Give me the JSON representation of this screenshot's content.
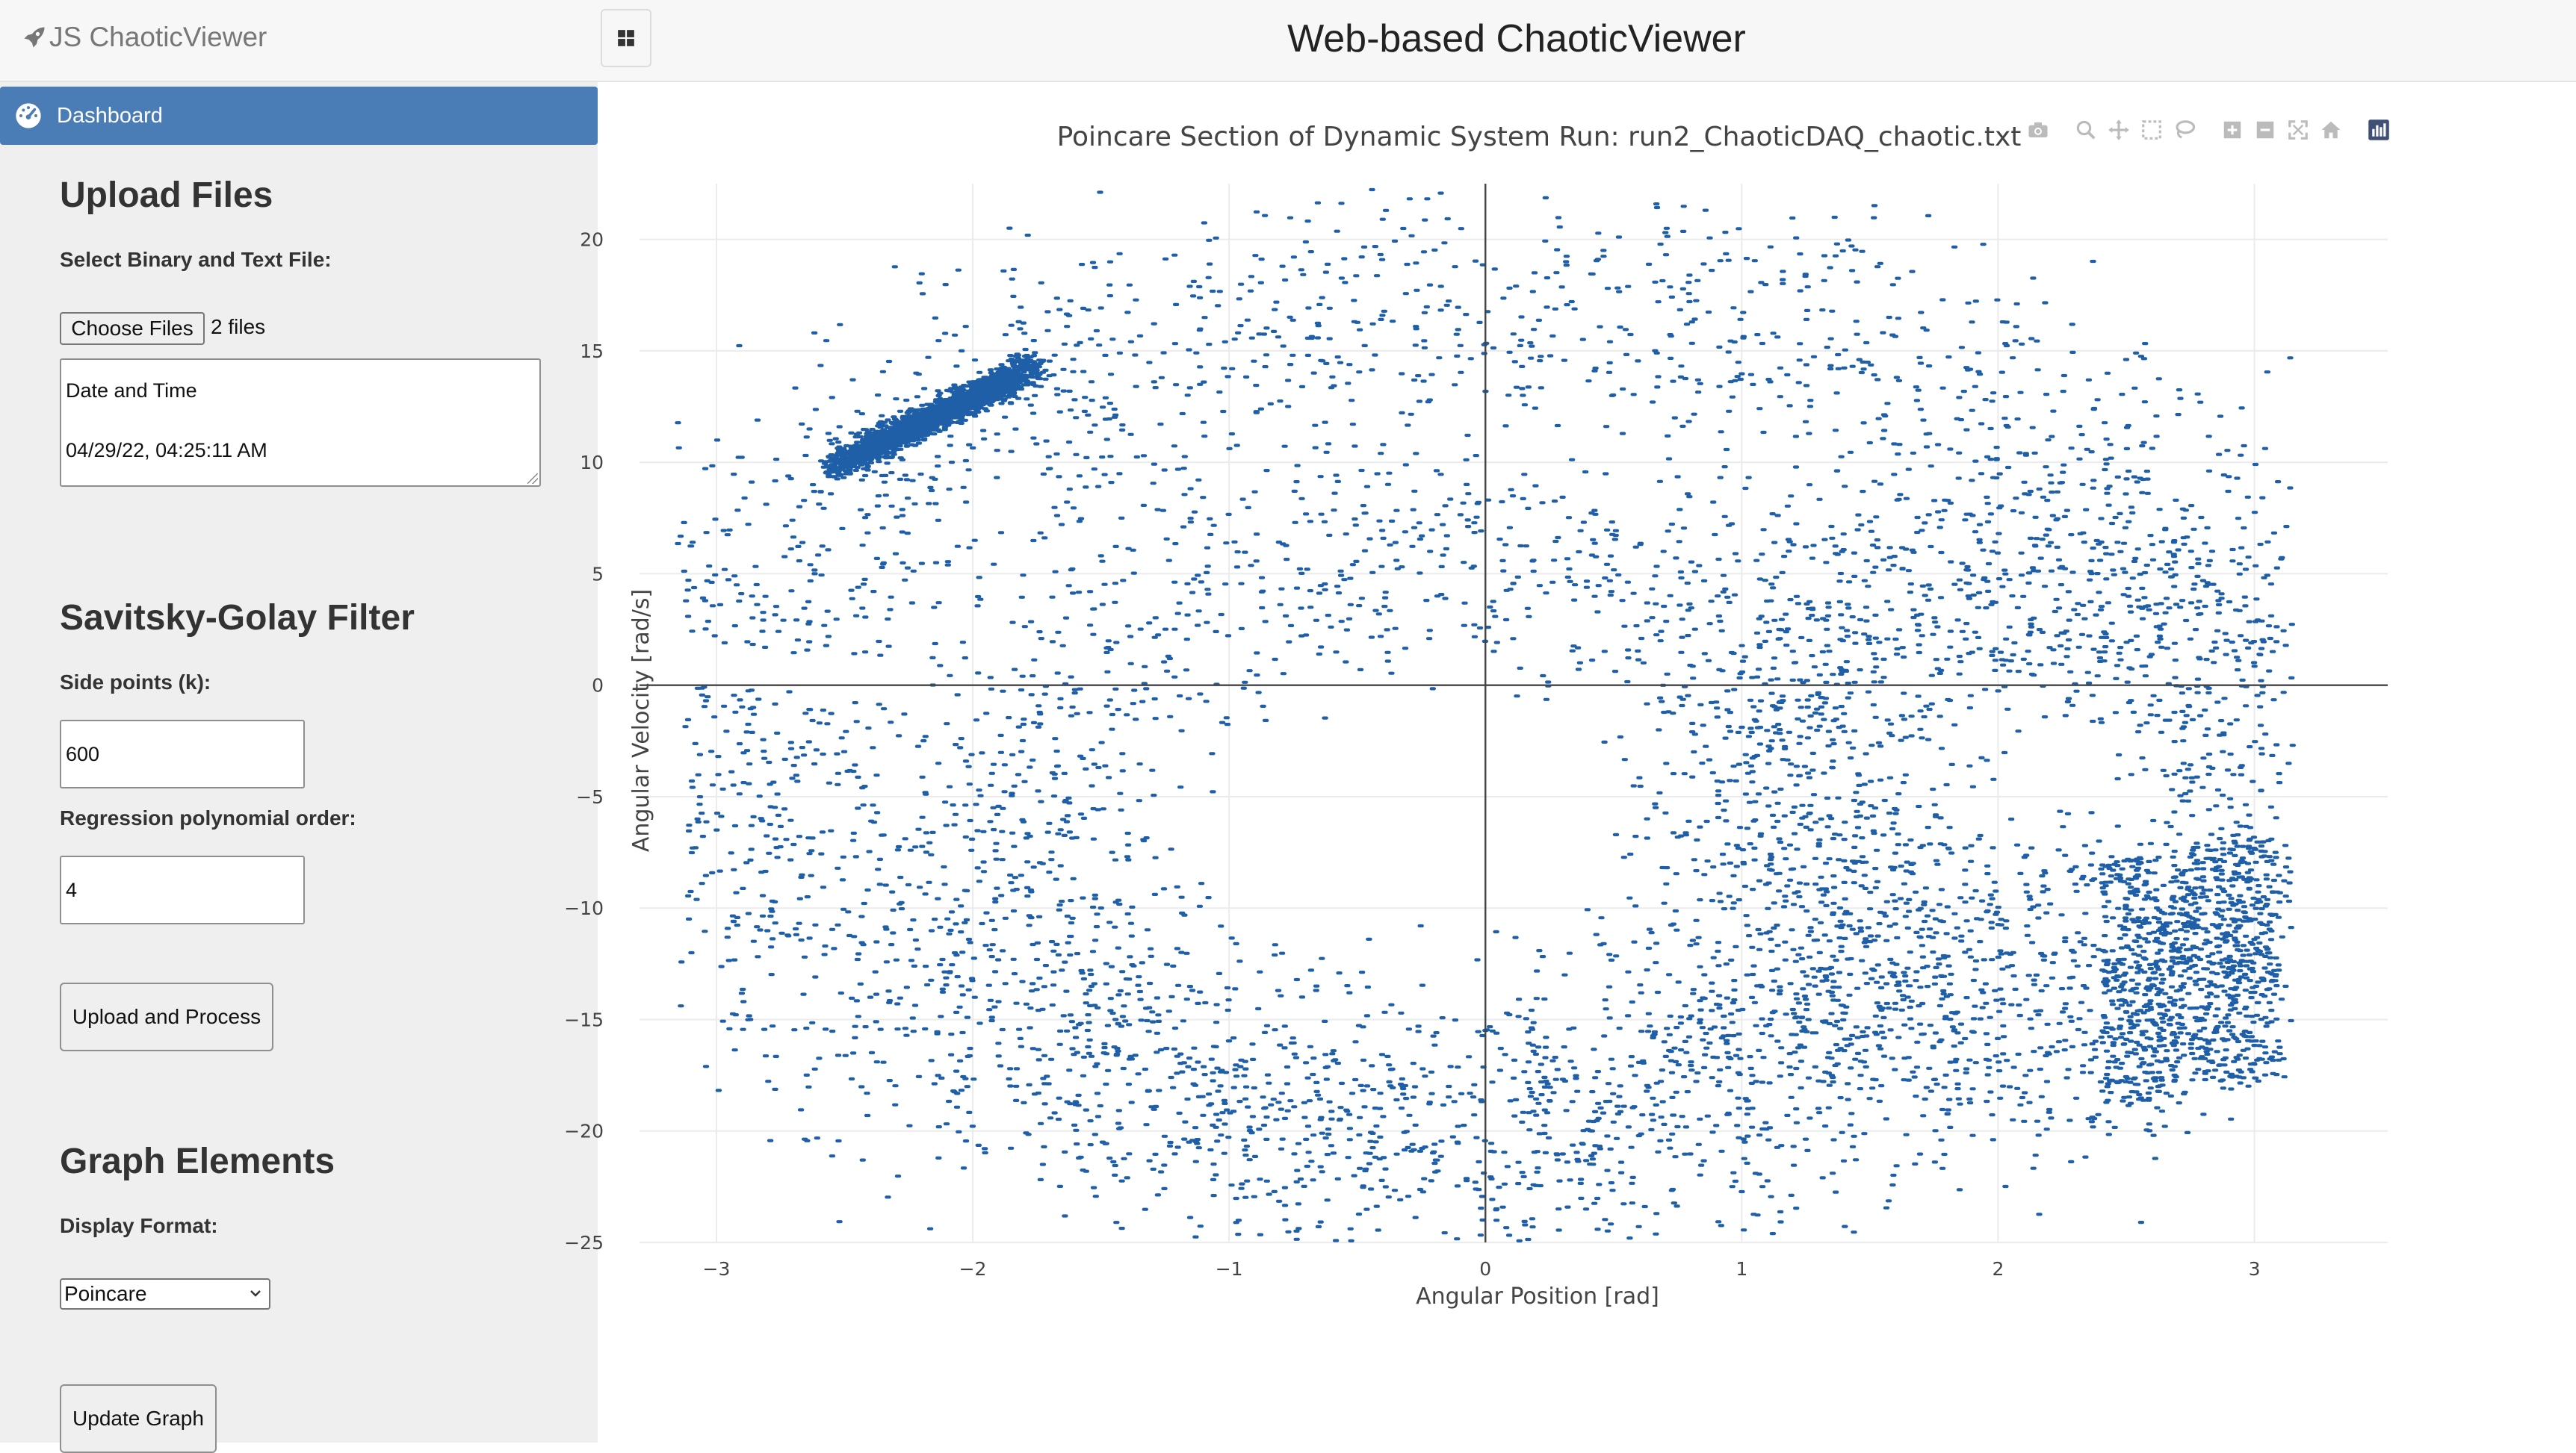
{
  "header": {
    "brand": "JS ChaoticViewer",
    "title": "Web-based ChaoticViewer"
  },
  "sidebar": {
    "nav_item": "Dashboard",
    "upload": {
      "heading": "Upload Files",
      "label": "Select Binary and Text File:",
      "choose_button": "Choose Files",
      "file_count": "2 files",
      "info_line1": "Date and Time",
      "info_line2": "04/29/22, 04:25:11 AM"
    },
    "filter": {
      "heading": "Savitsky-Golay Filter",
      "side_points_label": "Side points (k):",
      "side_points_value": "600",
      "order_label": "Regression polynomial order:",
      "order_value": "4",
      "process_button": "Upload and Process"
    },
    "graph": {
      "heading": "Graph Elements",
      "format_label": "Display Format:",
      "format_value": "Poincare",
      "update_button": "Update Graph"
    }
  },
  "chart_data": {
    "type": "scatter",
    "title": "Poincare Section of Dynamic System Run: run2_ChaoticDAQ_chaotic.txt",
    "xlabel": "Angular Position [rad]",
    "ylabel": "Angular Velocity [rad/s]",
    "xlim": [
      -3.3,
      3.52
    ],
    "ylim": [
      -25,
      22.5
    ],
    "xticks": [
      -3,
      -2,
      -1,
      0,
      1,
      2,
      3
    ],
    "xticklabels": [
      "−3",
      "−2",
      "−1",
      "0",
      "1",
      "2",
      "3"
    ],
    "yticks": [
      -25,
      -20,
      -15,
      -10,
      -5,
      0,
      5,
      10,
      15,
      20
    ],
    "yticklabels": [
      "−25",
      "−20",
      "−15",
      "−10",
      "−5",
      "0",
      "5",
      "10",
      "15",
      "20"
    ],
    "grid": true,
    "marker_color": "#1f5fa8",
    "approx_point_count": 9000,
    "regions": [
      {
        "name": "outer band",
        "center": [
          0,
          -2
        ],
        "radii": [
          3.0,
          19.5
        ],
        "width": 0.42,
        "theta_range": [
          0.15,
          2.95
        ],
        "density": 0.9
      },
      {
        "name": "outer band lower",
        "center": [
          -0.3,
          -2.5
        ],
        "radii": [
          2.7,
          17.5
        ],
        "width": 0.55,
        "theta_range": [
          3.0,
          6.0
        ],
        "density": 1.0
      },
      {
        "name": "inner loop",
        "center": [
          -0.15,
          -7.5
        ],
        "radii": [
          1.7,
          14.0
        ],
        "width": 0.55,
        "theta_range": [
          0,
          6.28
        ],
        "density": 1.2
      },
      {
        "name": "right lobe",
        "center": [
          2.05,
          -5.5
        ],
        "radii": [
          1.0,
          11.0
        ],
        "width": 0.8,
        "theta_range": [
          0,
          6.28
        ],
        "density": 1.0
      },
      {
        "name": "dense streak",
        "x_range": [
          -2.55,
          -1.75
        ],
        "y_range": [
          9.8,
          14.4
        ],
        "density": 1.0
      },
      {
        "name": "lower right patch",
        "x_range": [
          2.4,
          3.1
        ],
        "y_range": [
          -19,
          -8
        ],
        "density": 0.6
      }
    ]
  },
  "modebar": {
    "icons": [
      "camera-icon",
      "zoom-icon",
      "pan-icon",
      "box-select-icon",
      "lasso-icon",
      "zoom-in-icon",
      "zoom-out-icon",
      "autoscale-icon",
      "reset-axes-icon",
      "plotly-logo-icon"
    ]
  },
  "colors": {
    "accent": "#4a7cb5",
    "sidebar_bg": "#efefef",
    "header_bg": "#f7f7f7",
    "marker": "#1f5fa8"
  }
}
